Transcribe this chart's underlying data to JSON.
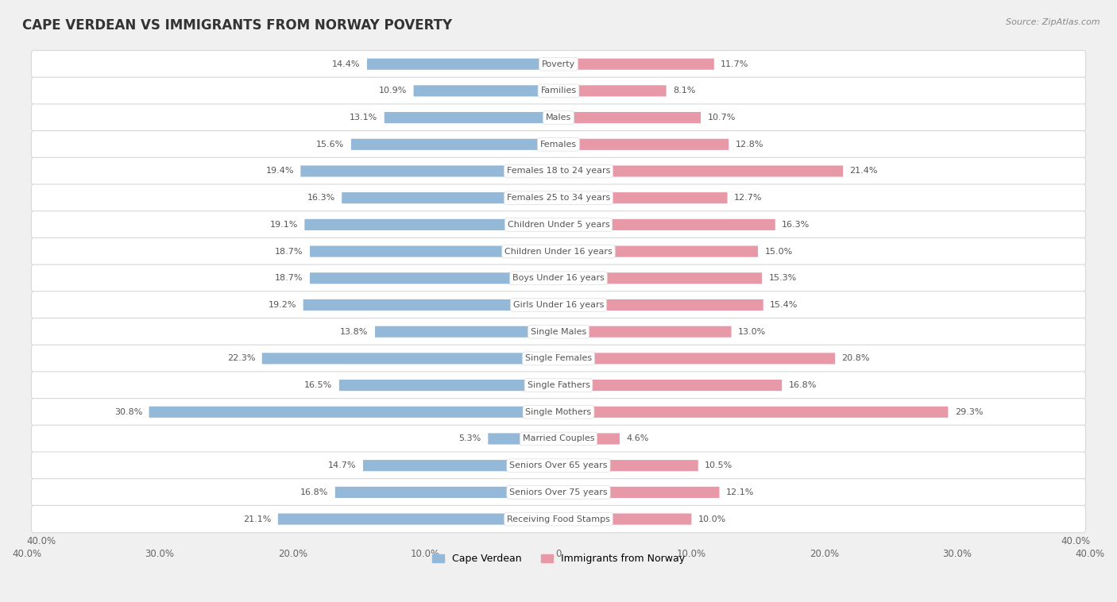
{
  "title": "CAPE VERDEAN VS IMMIGRANTS FROM NORWAY POVERTY",
  "source": "Source: ZipAtlas.com",
  "categories": [
    "Poverty",
    "Families",
    "Males",
    "Females",
    "Females 18 to 24 years",
    "Females 25 to 34 years",
    "Children Under 5 years",
    "Children Under 16 years",
    "Boys Under 16 years",
    "Girls Under 16 years",
    "Single Males",
    "Single Females",
    "Single Fathers",
    "Single Mothers",
    "Married Couples",
    "Seniors Over 65 years",
    "Seniors Over 75 years",
    "Receiving Food Stamps"
  ],
  "cape_verdean": [
    14.4,
    10.9,
    13.1,
    15.6,
    19.4,
    16.3,
    19.1,
    18.7,
    18.7,
    19.2,
    13.8,
    22.3,
    16.5,
    30.8,
    5.3,
    14.7,
    16.8,
    21.1
  ],
  "norway": [
    11.7,
    8.1,
    10.7,
    12.8,
    21.4,
    12.7,
    16.3,
    15.0,
    15.3,
    15.4,
    13.0,
    20.8,
    16.8,
    29.3,
    4.6,
    10.5,
    12.1,
    10.0
  ],
  "cape_verdean_color": "#93b8d8",
  "norway_color": "#e899a8",
  "background_color": "#f0f0f0",
  "bar_row_color": "#ffffff",
  "bar_row_border": "#d8d8d8",
  "label_bg_color": "#ffffff",
  "label_text_color": "#555555",
  "value_text_color": "#555555",
  "axis_limit": 40.0,
  "legend_cape_verdean": "Cape Verdean",
  "legend_norway": "Immigrants from Norway"
}
